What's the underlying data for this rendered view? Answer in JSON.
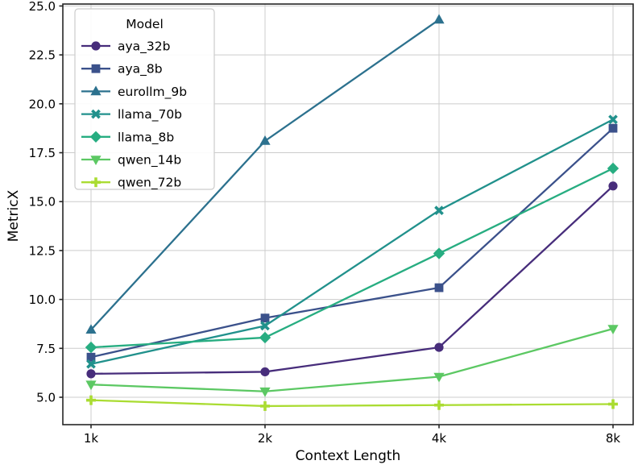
{
  "chart_data": {
    "type": "line",
    "title": "",
    "xlabel": "Context Length",
    "ylabel": "MetricX",
    "legend_title": "Model",
    "legend_position": "upper-left",
    "grid": true,
    "x_categories": [
      "1k",
      "2k",
      "4k",
      "8k"
    ],
    "x_scale": "log2-categorical",
    "yticks": [
      5.0,
      7.5,
      10.0,
      12.5,
      15.0,
      17.5,
      20.0,
      22.5,
      25.0
    ],
    "ylim": [
      3.6,
      25.1
    ],
    "series": [
      {
        "name": "aya_32b",
        "marker": "circle",
        "color": "#472d7b",
        "values": [
          6.2,
          6.3,
          7.55,
          15.8
        ]
      },
      {
        "name": "aya_8b",
        "marker": "square",
        "color": "#3b518b",
        "values": [
          7.05,
          9.05,
          10.6,
          18.75
        ]
      },
      {
        "name": "eurollm_9b",
        "marker": "triangle-up",
        "color": "#2c718e",
        "values": [
          8.45,
          18.1,
          24.3,
          null
        ]
      },
      {
        "name": "llama_70b",
        "marker": "x",
        "color": "#21918c",
        "values": [
          6.7,
          8.65,
          14.55,
          19.2
        ]
      },
      {
        "name": "llama_8b",
        "marker": "diamond",
        "color": "#27ad81",
        "values": [
          7.55,
          8.05,
          12.35,
          16.7
        ]
      },
      {
        "name": "qwen_14b",
        "marker": "triangle-down",
        "color": "#5cc863",
        "values": [
          5.65,
          5.3,
          6.05,
          8.5
        ]
      },
      {
        "name": "qwen_72b",
        "marker": "plus",
        "color": "#aadc32",
        "values": [
          4.85,
          4.55,
          4.6,
          4.65
        ]
      }
    ],
    "colors": {
      "grid": "#cccccc",
      "spine": "#262626",
      "tick_label": "#000000",
      "legend_border": "#cccccc",
      "legend_bg": "#ffffff"
    }
  }
}
